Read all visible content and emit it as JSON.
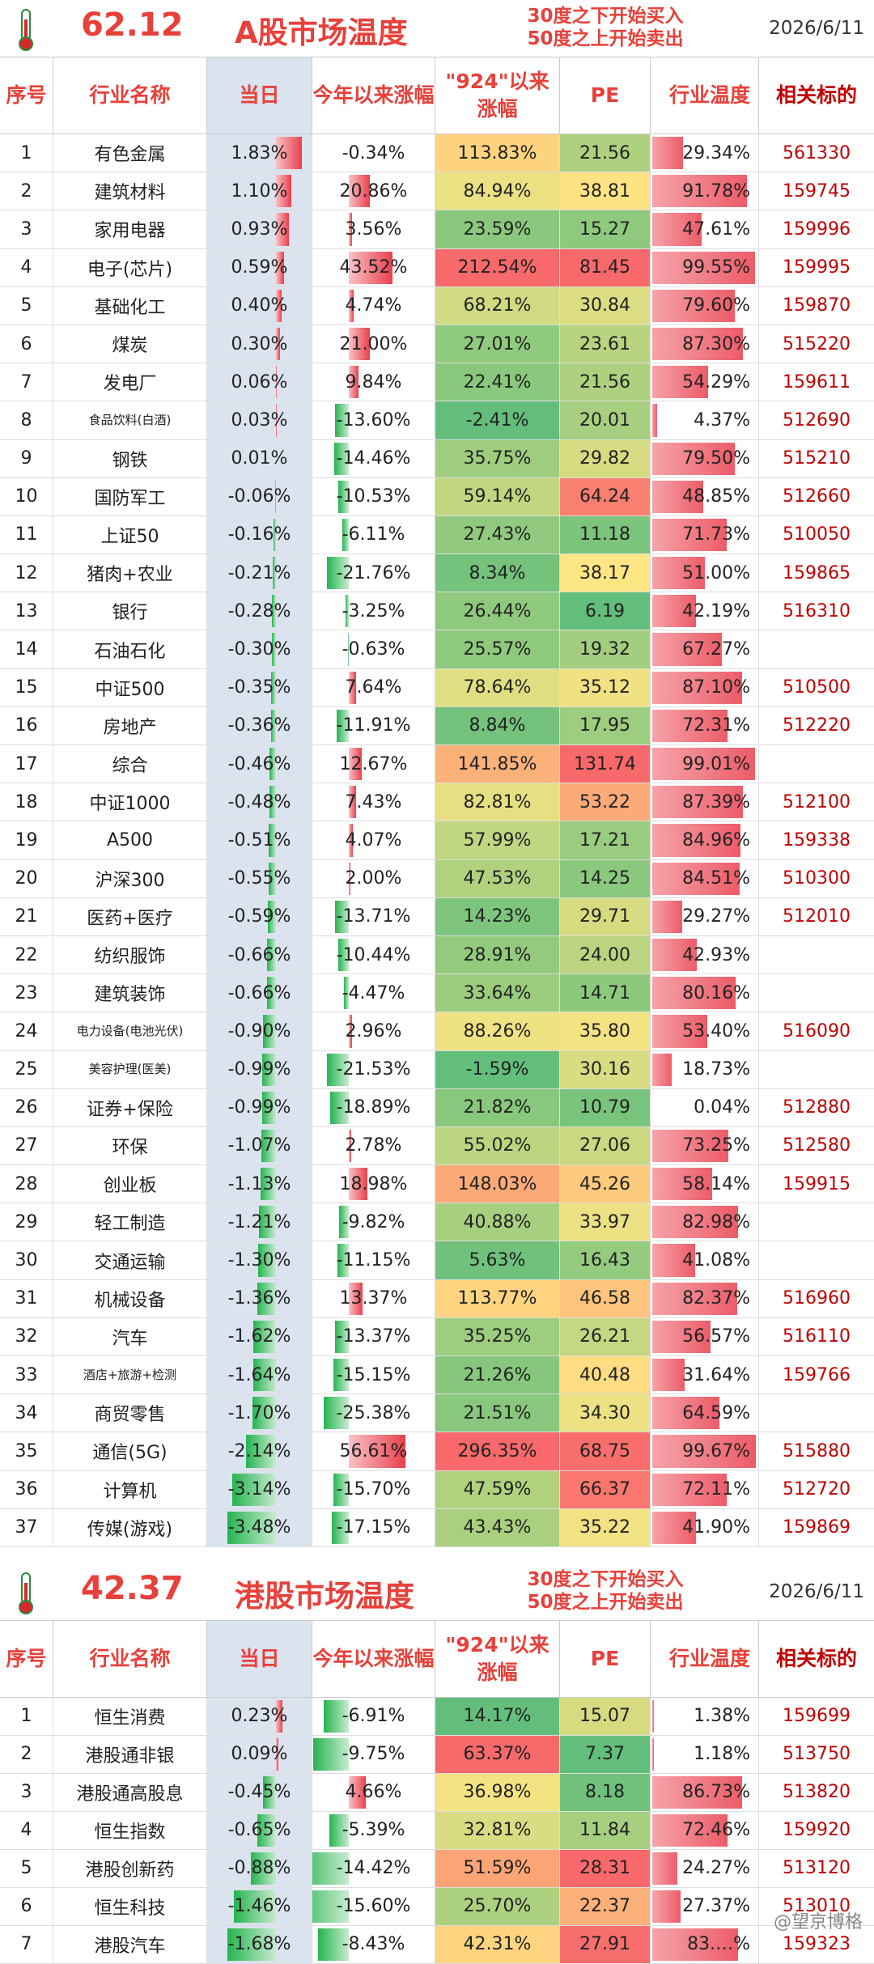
{
  "a": {
    "temperature": "62.12",
    "title": "A股市场温度",
    "rule1": "30度之下开始买入",
    "rule2": "50度之上开始卖出",
    "date": "2026/6/11",
    "headers": {
      "no": "序号",
      "name": "行业名称",
      "day": "当日",
      "ytd": "今年以来涨幅",
      "since924": "\"924\"以来涨幅",
      "pe": "PE",
      "ind_temp": "行业温度",
      "related": "相关标的"
    },
    "rows": [
      [
        "1",
        "有色金属",
        "1.83%",
        "-0.34%",
        "113.83%",
        "21.56",
        "29.34%",
        "561330"
      ],
      [
        "2",
        "建筑材料",
        "1.10%",
        "20.86%",
        "84.94%",
        "38.81",
        "91.78%",
        "159745"
      ],
      [
        "3",
        "家用电器",
        "0.93%",
        "3.56%",
        "23.59%",
        "15.27",
        "47.61%",
        "159996"
      ],
      [
        "4",
        "电子(芯片)",
        "0.59%",
        "43.52%",
        "212.54%",
        "81.45",
        "99.55%",
        "159995"
      ],
      [
        "5",
        "基础化工",
        "0.40%",
        "4.74%",
        "68.21%",
        "30.84",
        "79.60%",
        "159870"
      ],
      [
        "6",
        "煤炭",
        "0.30%",
        "21.00%",
        "27.01%",
        "23.61",
        "87.30%",
        "515220"
      ],
      [
        "7",
        "发电厂",
        "0.06%",
        "9.84%",
        "22.41%",
        "21.56",
        "54.29%",
        "159611"
      ],
      [
        "8",
        "食品饮料(白酒)",
        "0.03%",
        "-13.60%",
        "-2.41%",
        "20.01",
        "4.37%",
        "512690"
      ],
      [
        "9",
        "钢铁",
        "0.01%",
        "-14.46%",
        "35.75%",
        "29.82",
        "79.50%",
        "515210"
      ],
      [
        "10",
        "国防军工",
        "-0.06%",
        "-10.53%",
        "59.14%",
        "64.24",
        "48.85%",
        "512660"
      ],
      [
        "11",
        "上证50",
        "-0.16%",
        "-6.11%",
        "27.43%",
        "11.18",
        "71.73%",
        "510050"
      ],
      [
        "12",
        "猪肉+农业",
        "-0.21%",
        "-21.76%",
        "8.34%",
        "38.17",
        "51.00%",
        "159865"
      ],
      [
        "13",
        "银行",
        "-0.28%",
        "-3.25%",
        "26.44%",
        "6.19",
        "42.19%",
        "516310"
      ],
      [
        "14",
        "石油石化",
        "-0.30%",
        "-0.63%",
        "25.57%",
        "19.32",
        "67.27%",
        ""
      ],
      [
        "15",
        "中证500",
        "-0.35%",
        "7.64%",
        "78.64%",
        "35.12",
        "87.10%",
        "510500"
      ],
      [
        "16",
        "房地产",
        "-0.36%",
        "-11.91%",
        "8.84%",
        "17.95",
        "72.31%",
        "512220"
      ],
      [
        "17",
        "综合",
        "-0.46%",
        "12.67%",
        "141.85%",
        "131.74",
        "99.01%",
        ""
      ],
      [
        "18",
        "中证1000",
        "-0.48%",
        "7.43%",
        "82.81%",
        "53.22",
        "87.39%",
        "512100"
      ],
      [
        "19",
        "A500",
        "-0.51%",
        "4.07%",
        "57.99%",
        "17.21",
        "84.96%",
        "159338"
      ],
      [
        "20",
        "沪深300",
        "-0.55%",
        "2.00%",
        "47.53%",
        "14.25",
        "84.51%",
        "510300"
      ],
      [
        "21",
        "医药+医疗",
        "-0.59%",
        "-13.71%",
        "14.23%",
        "29.71",
        "29.27%",
        "512010"
      ],
      [
        "22",
        "纺织服饰",
        "-0.66%",
        "-10.44%",
        "28.91%",
        "24.00",
        "42.93%",
        ""
      ],
      [
        "23",
        "建筑装饰",
        "-0.66%",
        "-4.47%",
        "33.64%",
        "14.71",
        "80.16%",
        ""
      ],
      [
        "24",
        "电力设备(电池光伏)",
        "-0.90%",
        "2.96%",
        "88.26%",
        "35.80",
        "53.40%",
        "516090"
      ],
      [
        "25",
        "美容护理(医美)",
        "-0.99%",
        "-21.53%",
        "-1.59%",
        "30.16",
        "18.73%",
        ""
      ],
      [
        "26",
        "证券+保险",
        "-0.99%",
        "-18.89%",
        "21.82%",
        "10.79",
        "0.04%",
        "512880"
      ],
      [
        "27",
        "环保",
        "-1.07%",
        "2.78%",
        "55.02%",
        "27.06",
        "73.25%",
        "512580"
      ],
      [
        "28",
        "创业板",
        "-1.13%",
        "18.98%",
        "148.03%",
        "45.26",
        "58.14%",
        "159915"
      ],
      [
        "29",
        "轻工制造",
        "-1.21%",
        "-9.82%",
        "40.88%",
        "33.97",
        "82.98%",
        ""
      ],
      [
        "30",
        "交通运输",
        "-1.30%",
        "-11.15%",
        "5.63%",
        "16.43",
        "41.08%",
        ""
      ],
      [
        "31",
        "机械设备",
        "-1.36%",
        "13.37%",
        "113.77%",
        "46.58",
        "82.37%",
        "516960"
      ],
      [
        "32",
        "汽车",
        "-1.62%",
        "-13.37%",
        "35.25%",
        "26.21",
        "56.57%",
        "516110"
      ],
      [
        "33",
        "酒店+旅游+检测",
        "-1.64%",
        "-15.15%",
        "21.26%",
        "40.48",
        "31.64%",
        "159766"
      ],
      [
        "34",
        "商贸零售",
        "-1.70%",
        "-25.38%",
        "21.51%",
        "34.30",
        "64.59%",
        ""
      ],
      [
        "35",
        "通信(5G)",
        "-2.14%",
        "56.61%",
        "296.35%",
        "68.75",
        "99.67%",
        "515880"
      ],
      [
        "36",
        "计算机",
        "-3.14%",
        "-15.70%",
        "47.59%",
        "66.37",
        "72.11%",
        "512720"
      ],
      [
        "37",
        "传媒(游戏)",
        "-3.48%",
        "-17.15%",
        "43.43%",
        "35.22",
        "41.90%",
        "159869"
      ]
    ]
  },
  "hk": {
    "temperature": "42.37",
    "title": "港股市场温度",
    "rule1": "30度之下开始买入",
    "rule2": "50度之上开始卖出",
    "date": "2026/6/11",
    "headers": {
      "no": "序号",
      "name": "行业名称",
      "day": "当日",
      "ytd": "今年以来涨幅",
      "since924": "\"924\"以来涨幅",
      "pe": "PE",
      "ind_temp": "行业温度",
      "related": "相关标的"
    },
    "rows": [
      [
        "1",
        "恒生消费",
        "0.23%",
        "-6.91%",
        "14.17%",
        "15.07",
        "1.38%",
        "159699"
      ],
      [
        "2",
        "港股通非银",
        "0.09%",
        "-9.75%",
        "63.37%",
        "7.37",
        "1.18%",
        "513750"
      ],
      [
        "3",
        "港股通高股息",
        "-0.45%",
        "4.66%",
        "36.98%",
        "8.18",
        "86.73%",
        "513820"
      ],
      [
        "4",
        "恒生指数",
        "-0.65%",
        "-5.39%",
        "32.81%",
        "11.84",
        "72.46%",
        "159920"
      ],
      [
        "5",
        "港股创新药",
        "-0.88%",
        "-14.42%",
        "51.59%",
        "28.31",
        "24.27%",
        "513120"
      ],
      [
        "6",
        "恒生科技",
        "-1.46%",
        "-15.60%",
        "25.70%",
        "22.37",
        "27.37%",
        "513010"
      ],
      [
        "7",
        "港股汽车",
        "-1.68%",
        "-8.43%",
        "42.31%",
        "27.91",
        "83.…%",
        "159323"
      ]
    ]
  },
  "watermark": "@望京博格"
}
